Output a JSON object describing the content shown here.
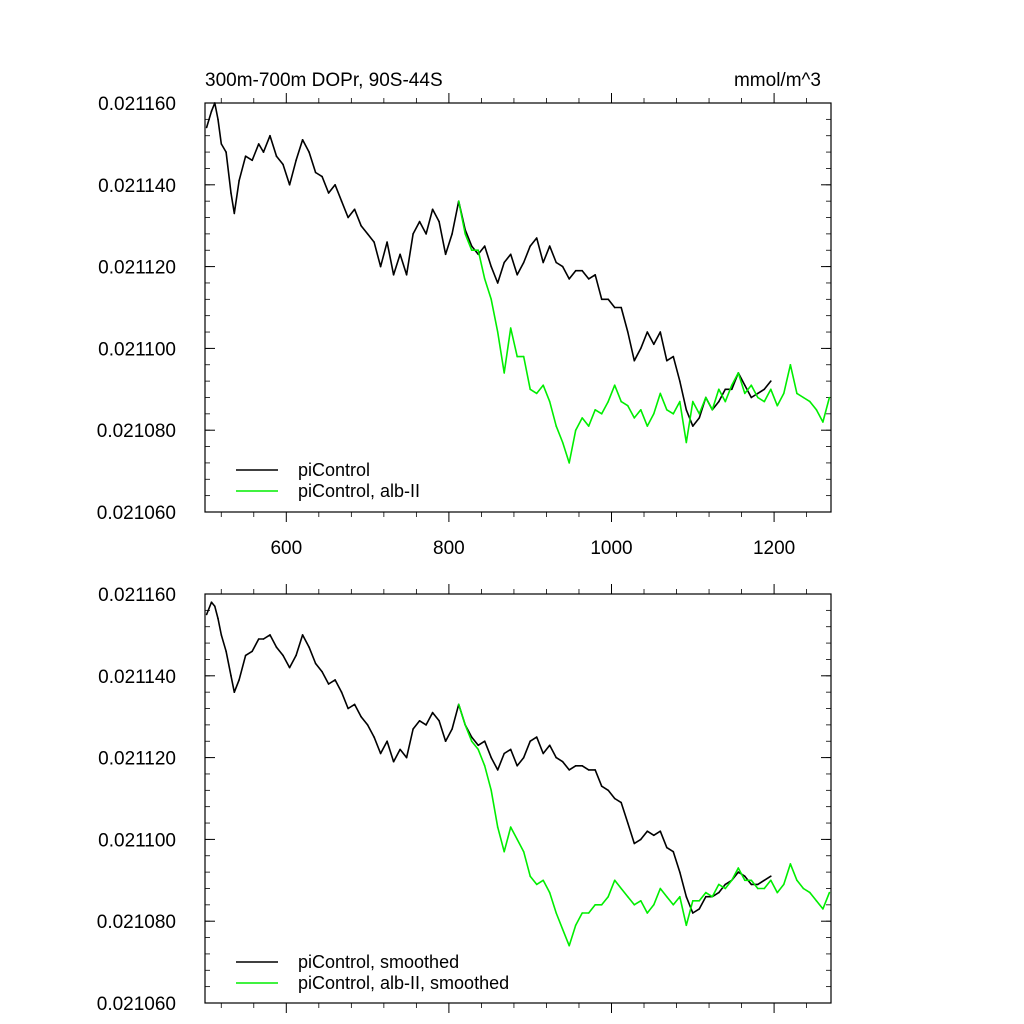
{
  "colors": {
    "piControl": "#000000",
    "alb": "#00ee00",
    "axis": "#000000",
    "background": "#ffffff"
  },
  "chart_data": [
    {
      "type": "line",
      "title_left": "300m-700m DOPr, 90S-44S",
      "title_right": "mmol/m^3",
      "xlabel": "",
      "ylabel": "",
      "xlim": [
        500,
        1270
      ],
      "ylim": [
        0.02106,
        0.02116
      ],
      "xticks": [
        600,
        800,
        1000,
        1200
      ],
      "xtick_labels": [
        "600",
        "800",
        "1000",
        "1200"
      ],
      "yticks": [
        0.02106,
        0.02108,
        0.0211,
        0.02112,
        0.02114,
        0.02116
      ],
      "ytick_labels": [
        "0.021060",
        "0.021080",
        "0.021100",
        "0.021120",
        "0.021140",
        "0.021160"
      ],
      "grid": false,
      "legend_position": "bottom-left",
      "series": [
        {
          "name": "piControl",
          "color": "#000000",
          "x": [
            502,
            508,
            512,
            516,
            520,
            526,
            532,
            536,
            542,
            550,
            558,
            566,
            572,
            580,
            588,
            596,
            604,
            612,
            620,
            628,
            636,
            644,
            652,
            660,
            668,
            676,
            684,
            692,
            700,
            708,
            716,
            724,
            732,
            740,
            748,
            756,
            764,
            772,
            780,
            788,
            796,
            804,
            812,
            820,
            828,
            836,
            844,
            852,
            860,
            868,
            876,
            884,
            892,
            900,
            908,
            916,
            924,
            932,
            940,
            948,
            956,
            964,
            972,
            980,
            988,
            996,
            1004,
            1012,
            1020,
            1028,
            1036,
            1044,
            1052,
            1060,
            1068,
            1076,
            1084,
            1092,
            1100,
            1108,
            1116,
            1124,
            1132,
            1140,
            1148,
            1156,
            1164,
            1172,
            1180,
            1188,
            1196
          ],
          "y": [
            0.021154,
            0.021158,
            0.02116,
            0.021156,
            0.02115,
            0.021148,
            0.021138,
            0.021133,
            0.021141,
            0.021147,
            0.021146,
            0.02115,
            0.021148,
            0.021152,
            0.021147,
            0.021145,
            0.02114,
            0.021146,
            0.021151,
            0.021148,
            0.021143,
            0.021142,
            0.021138,
            0.02114,
            0.021136,
            0.021132,
            0.021134,
            0.02113,
            0.021128,
            0.021126,
            0.02112,
            0.021126,
            0.021118,
            0.021123,
            0.021118,
            0.021128,
            0.021131,
            0.021128,
            0.021134,
            0.021131,
            0.021123,
            0.021128,
            0.021136,
            0.021129,
            0.021125,
            0.021123,
            0.021125,
            0.02112,
            0.021116,
            0.021121,
            0.021123,
            0.021118,
            0.021121,
            0.021125,
            0.021127,
            0.021121,
            0.021125,
            0.021121,
            0.02112,
            0.021117,
            0.021119,
            0.021119,
            0.021117,
            0.021118,
            0.021112,
            0.021112,
            0.02111,
            0.02111,
            0.021104,
            0.021097,
            0.0211,
            0.021104,
            0.021101,
            0.021104,
            0.021097,
            0.021098,
            0.021092,
            0.021085,
            0.021081,
            0.021083,
            0.021088,
            0.021085,
            0.021087,
            0.02109,
            0.02109,
            0.021094,
            0.021091,
            0.021088,
            0.021089,
            0.02109,
            0.021092
          ]
        },
        {
          "name": "piControl, alb-II",
          "color": "#00ee00",
          "x": [
            812,
            820,
            828,
            836,
            844,
            852,
            860,
            868,
            876,
            884,
            892,
            900,
            908,
            916,
            924,
            932,
            940,
            948,
            956,
            964,
            972,
            980,
            988,
            996,
            1004,
            1012,
            1020,
            1028,
            1036,
            1044,
            1052,
            1060,
            1068,
            1076,
            1084,
            1092,
            1100,
            1108,
            1116,
            1124,
            1132,
            1140,
            1148,
            1156,
            1164,
            1172,
            1180,
            1188,
            1196,
            1204,
            1212,
            1220,
            1228,
            1236,
            1244,
            1252,
            1260,
            1268
          ],
          "y": [
            0.021136,
            0.021128,
            0.021124,
            0.021124,
            0.021117,
            0.021112,
            0.021104,
            0.021094,
            0.021105,
            0.021098,
            0.021098,
            0.02109,
            0.021089,
            0.021091,
            0.021087,
            0.021081,
            0.021077,
            0.021072,
            0.02108,
            0.021083,
            0.021081,
            0.021085,
            0.021084,
            0.021087,
            0.021091,
            0.021087,
            0.021086,
            0.021083,
            0.021085,
            0.021081,
            0.021084,
            0.021089,
            0.021085,
            0.021084,
            0.021087,
            0.021077,
            0.021087,
            0.021084,
            0.021088,
            0.021085,
            0.02109,
            0.021087,
            0.021091,
            0.021094,
            0.021089,
            0.021091,
            0.021088,
            0.021087,
            0.02109,
            0.021086,
            0.021089,
            0.021096,
            0.021089,
            0.021088,
            0.021087,
            0.021085,
            0.021082,
            0.021088
          ]
        }
      ]
    },
    {
      "type": "line",
      "title_left": "",
      "title_right": "",
      "xlabel": "",
      "ylabel": "",
      "xlim": [
        500,
        1270
      ],
      "ylim": [
        0.02106,
        0.02116
      ],
      "xticks": [
        600,
        800,
        1000,
        1200
      ],
      "xtick_labels": [],
      "yticks": [
        0.02106,
        0.02108,
        0.0211,
        0.02112,
        0.02114,
        0.02116
      ],
      "ytick_labels": [
        "0.021060",
        "0.021080",
        "0.021100",
        "0.021120",
        "0.021140",
        "0.021160"
      ],
      "grid": false,
      "legend_position": "bottom-left",
      "series": [
        {
          "name": "piControl, smoothed",
          "color": "#000000",
          "x": [
            502,
            508,
            512,
            516,
            520,
            526,
            532,
            536,
            542,
            550,
            558,
            566,
            572,
            580,
            588,
            596,
            604,
            612,
            620,
            628,
            636,
            644,
            652,
            660,
            668,
            676,
            684,
            692,
            700,
            708,
            716,
            724,
            732,
            740,
            748,
            756,
            764,
            772,
            780,
            788,
            796,
            804,
            812,
            820,
            828,
            836,
            844,
            852,
            860,
            868,
            876,
            884,
            892,
            900,
            908,
            916,
            924,
            932,
            940,
            948,
            956,
            964,
            972,
            980,
            988,
            996,
            1004,
            1012,
            1020,
            1028,
            1036,
            1044,
            1052,
            1060,
            1068,
            1076,
            1084,
            1092,
            1100,
            1108,
            1116,
            1124,
            1132,
            1140,
            1148,
            1156,
            1164,
            1172,
            1180,
            1188,
            1196
          ],
          "y": [
            0.021155,
            0.021158,
            0.021157,
            0.021154,
            0.02115,
            0.021146,
            0.02114,
            0.021136,
            0.021139,
            0.021145,
            0.021146,
            0.021149,
            0.021149,
            0.02115,
            0.021147,
            0.021145,
            0.021142,
            0.021145,
            0.02115,
            0.021147,
            0.021143,
            0.021141,
            0.021138,
            0.021139,
            0.021136,
            0.021132,
            0.021133,
            0.02113,
            0.021128,
            0.021125,
            0.021121,
            0.021124,
            0.021119,
            0.021122,
            0.02112,
            0.021127,
            0.021129,
            0.021128,
            0.021131,
            0.021129,
            0.021124,
            0.021127,
            0.021133,
            0.021128,
            0.021125,
            0.021123,
            0.021124,
            0.02112,
            0.021117,
            0.021121,
            0.021122,
            0.021118,
            0.02112,
            0.021124,
            0.021125,
            0.021121,
            0.021123,
            0.02112,
            0.021119,
            0.021117,
            0.021118,
            0.021118,
            0.021117,
            0.021117,
            0.021113,
            0.021112,
            0.02111,
            0.021109,
            0.021104,
            0.021099,
            0.0211,
            0.021102,
            0.021101,
            0.021102,
            0.021098,
            0.021097,
            0.021092,
            0.021086,
            0.021082,
            0.021083,
            0.021086,
            0.021086,
            0.021087,
            0.021089,
            0.02109,
            0.021092,
            0.021091,
            0.021089,
            0.021089,
            0.02109,
            0.021091
          ]
        },
        {
          "name": "piControl, alb-II, smoothed",
          "color": "#00ee00",
          "x": [
            812,
            820,
            828,
            836,
            844,
            852,
            860,
            868,
            876,
            884,
            892,
            900,
            908,
            916,
            924,
            932,
            940,
            948,
            956,
            964,
            972,
            980,
            988,
            996,
            1004,
            1012,
            1020,
            1028,
            1036,
            1044,
            1052,
            1060,
            1068,
            1076,
            1084,
            1092,
            1100,
            1108,
            1116,
            1124,
            1132,
            1140,
            1148,
            1156,
            1164,
            1172,
            1180,
            1188,
            1196,
            1204,
            1212,
            1220,
            1228,
            1236,
            1244,
            1252,
            1260,
            1268
          ],
          "y": [
            0.021133,
            0.021128,
            0.021124,
            0.021122,
            0.021118,
            0.021112,
            0.021103,
            0.021097,
            0.021103,
            0.0211,
            0.021097,
            0.021091,
            0.021089,
            0.02109,
            0.021087,
            0.021082,
            0.021078,
            0.021074,
            0.021079,
            0.021082,
            0.021082,
            0.021084,
            0.021084,
            0.021086,
            0.02109,
            0.021088,
            0.021086,
            0.021084,
            0.021085,
            0.021082,
            0.021084,
            0.021088,
            0.021086,
            0.021084,
            0.021086,
            0.021079,
            0.021085,
            0.021085,
            0.021087,
            0.021086,
            0.021089,
            0.021088,
            0.02109,
            0.021093,
            0.02109,
            0.02109,
            0.021088,
            0.021088,
            0.02109,
            0.021087,
            0.021089,
            0.021094,
            0.02109,
            0.021088,
            0.021087,
            0.021085,
            0.021083,
            0.021087
          ]
        }
      ]
    }
  ]
}
